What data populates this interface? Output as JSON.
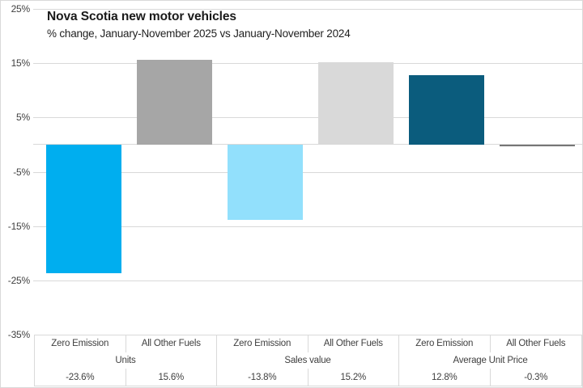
{
  "chart_data": {
    "type": "bar",
    "title": "Nova Scotia new motor vehicles",
    "subtitle": "% change, January-November 2025 vs January-November 2024",
    "group_labels": [
      "Units",
      "Sales value",
      "Average Unit Price"
    ],
    "categories": [
      "Zero Emission",
      "All Other Fuels",
      "Zero Emission",
      "All Other Fuels",
      "Zero Emission",
      "All Other Fuels"
    ],
    "values": [
      -23.6,
      15.6,
      -13.8,
      15.2,
      12.8,
      -0.3
    ],
    "value_labels": [
      "-23.6%",
      "15.6%",
      "-13.8%",
      "15.2%",
      "12.8%",
      "-0.3%"
    ],
    "bar_colors": [
      "#00AEEF",
      "#A6A6A6",
      "#92E0FC",
      "#D9D9D9",
      "#0B5C7D",
      "#767676"
    ],
    "ytick_labels": [
      "25%",
      "15%",
      "5%",
      "-5%",
      "-15%",
      "-25%",
      "-35%"
    ],
    "ytick_values": [
      25,
      15,
      5,
      -5,
      -15,
      -25,
      -35
    ],
    "ylim": [
      -35,
      25
    ],
    "grid": true,
    "gridline_color": "#D9D9D9",
    "axis_line_color": "#D9D9D9",
    "legend": "none"
  }
}
